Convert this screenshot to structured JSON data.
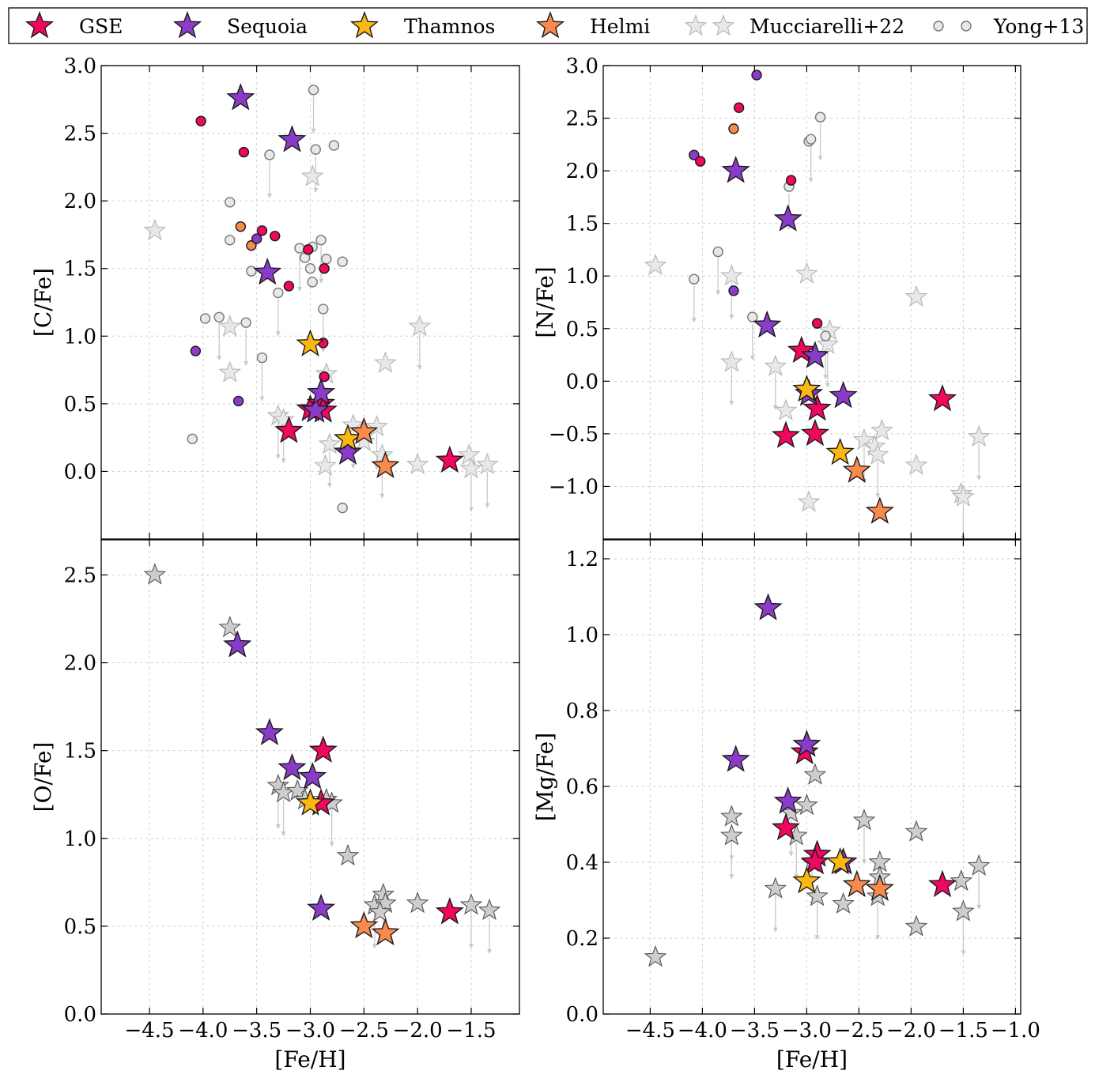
{
  "legend": [
    {
      "key": "gse",
      "label": "GSE",
      "marker": "star",
      "color": "#f0075f"
    },
    {
      "key": "seq",
      "label": "Sequoia",
      "marker": "star",
      "color": "#8a3cc8"
    },
    {
      "key": "tha",
      "label": "Thamnos",
      "marker": "star",
      "color": "#fbb813"
    },
    {
      "key": "hel",
      "label": "Helmi",
      "marker": "star",
      "color": "#f88a4e"
    },
    {
      "key": "muc",
      "label": "Mucciarelli+22",
      "marker": "star",
      "color": "#e8e8e8"
    },
    {
      "key": "yon",
      "label": "Yong+13",
      "marker": "circle",
      "color": "#e8e8e8"
    }
  ],
  "chart_data": [
    {
      "id": "cfe",
      "type": "scatter",
      "xlabel": "[Fe/H]",
      "ylabel": "[C/Fe]",
      "xlim": [
        -4.95,
        -1.05
      ],
      "ylim": [
        -0.5,
        3.0
      ],
      "xticks": [],
      "yticks": [
        0.0,
        0.5,
        1.0,
        1.5,
        2.0,
        2.5,
        3.0
      ],
      "grid": true,
      "points": [
        {
          "g": "muc",
          "x": -4.45,
          "y": 1.78
        },
        {
          "g": "muc",
          "x": -3.75,
          "y": 1.07
        },
        {
          "g": "muc",
          "x": -3.75,
          "y": 0.73
        },
        {
          "g": "muc",
          "x": -2.98,
          "y": 2.18
        },
        {
          "g": "muc",
          "x": -3.3,
          "y": 0.41
        },
        {
          "g": "muc",
          "x": -3.25,
          "y": 0.38
        },
        {
          "g": "muc",
          "x": -2.85,
          "y": 0.72
        },
        {
          "g": "muc",
          "x": -2.82,
          "y": 0.2
        },
        {
          "g": "muc",
          "x": -2.86,
          "y": 0.04
        },
        {
          "g": "muc",
          "x": -2.6,
          "y": 0.34
        },
        {
          "g": "muc",
          "x": -2.5,
          "y": 0.22
        },
        {
          "g": "muc",
          "x": -2.38,
          "y": 0.33
        },
        {
          "g": "muc",
          "x": -2.33,
          "y": 0.12
        },
        {
          "g": "muc",
          "x": -2.3,
          "y": 0.8
        },
        {
          "g": "muc",
          "x": -1.98,
          "y": 1.07
        },
        {
          "g": "muc",
          "x": -2.0,
          "y": 0.05
        },
        {
          "g": "muc",
          "x": -1.52,
          "y": 0.12
        },
        {
          "g": "muc",
          "x": -1.5,
          "y": 0.02
        },
        {
          "g": "muc",
          "x": -1.35,
          "y": 0.05
        },
        {
          "g": "yon",
          "x": -2.97,
          "y": 2.82
        },
        {
          "g": "yon",
          "x": -2.95,
          "y": 2.38
        },
        {
          "g": "yon",
          "x": -2.78,
          "y": 2.41
        },
        {
          "g": "yon",
          "x": -3.38,
          "y": 2.34
        },
        {
          "g": "yon",
          "x": -3.75,
          "y": 1.99
        },
        {
          "g": "yon",
          "x": -3.75,
          "y": 1.71
        },
        {
          "g": "yon",
          "x": -3.55,
          "y": 1.48
        },
        {
          "g": "yon",
          "x": -2.98,
          "y": 1.66
        },
        {
          "g": "yon",
          "x": -3.1,
          "y": 1.65
        },
        {
          "g": "yon",
          "x": -2.9,
          "y": 1.71
        },
        {
          "g": "yon",
          "x": -2.85,
          "y": 1.57
        },
        {
          "g": "yon",
          "x": -2.7,
          "y": 1.55
        },
        {
          "g": "yon",
          "x": -3.05,
          "y": 1.58
        },
        {
          "g": "yon",
          "x": -3.0,
          "y": 1.5
        },
        {
          "g": "yon",
          "x": -2.98,
          "y": 1.4
        },
        {
          "g": "yon",
          "x": -3.3,
          "y": 1.32
        },
        {
          "g": "yon",
          "x": -2.88,
          "y": 1.2
        },
        {
          "g": "yon",
          "x": -3.98,
          "y": 1.13
        },
        {
          "g": "yon",
          "x": -3.85,
          "y": 1.14
        },
        {
          "g": "yon",
          "x": -3.6,
          "y": 1.1
        },
        {
          "g": "yon",
          "x": -3.45,
          "y": 0.84
        },
        {
          "g": "yon",
          "x": -4.1,
          "y": 0.24
        },
        {
          "g": "yon",
          "x": -2.7,
          "y": -0.27
        },
        {
          "g": "gse",
          "x": -4.02,
          "y": 2.59
        },
        {
          "g": "gse",
          "x": -3.62,
          "y": 2.36
        },
        {
          "g": "gse",
          "x": -3.45,
          "y": 1.78
        },
        {
          "g": "gse",
          "x": -3.33,
          "y": 1.74
        },
        {
          "g": "gse",
          "x": -3.2,
          "y": 1.37
        },
        {
          "g": "gse",
          "x": -3.02,
          "y": 1.64
        },
        {
          "g": "gse",
          "x": -2.87,
          "y": 1.5
        },
        {
          "g": "gse",
          "x": -2.88,
          "y": 0.95
        },
        {
          "g": "gse",
          "x": -2.87,
          "y": 0.7
        },
        {
          "g": "hel",
          "x": -3.65,
          "y": 1.81
        },
        {
          "g": "hel",
          "x": -3.55,
          "y": 1.67
        },
        {
          "g": "seq",
          "x": -3.5,
          "y": 1.72
        },
        {
          "g": "seq",
          "x": -4.07,
          "y": 0.89
        },
        {
          "g": "seq",
          "x": -3.67,
          "y": 0.52
        },
        {
          "g": "gse",
          "x": -3.2,
          "y": 0.3,
          "s": "big"
        },
        {
          "g": "gse",
          "x": -3.0,
          "y": 0.46,
          "s": "big"
        },
        {
          "g": "gse",
          "x": -2.9,
          "y": 0.5,
          "s": "big"
        },
        {
          "g": "gse",
          "x": -2.88,
          "y": 0.45,
          "s": "big"
        },
        {
          "g": "gse",
          "x": -1.7,
          "y": 0.08,
          "s": "big"
        },
        {
          "g": "seq",
          "x": -3.65,
          "y": 2.76,
          "s": "big"
        },
        {
          "g": "seq",
          "x": -3.17,
          "y": 2.45,
          "s": "big"
        },
        {
          "g": "seq",
          "x": -3.4,
          "y": 1.47,
          "s": "big"
        },
        {
          "g": "seq",
          "x": -2.95,
          "y": 0.45,
          "s": "big"
        },
        {
          "g": "seq",
          "x": -2.9,
          "y": 0.58,
          "s": "big"
        },
        {
          "g": "seq",
          "x": -2.65,
          "y": 0.14,
          "s": "big"
        },
        {
          "g": "tha",
          "x": -3.0,
          "y": 0.94,
          "s": "big"
        },
        {
          "g": "tha",
          "x": -2.65,
          "y": 0.24,
          "s": "big"
        },
        {
          "g": "hel",
          "x": -2.5,
          "y": 0.29,
          "s": "big"
        },
        {
          "g": "hel",
          "x": -2.3,
          "y": 0.04,
          "s": "big"
        }
      ]
    },
    {
      "id": "nfe",
      "type": "scatter",
      "xlabel": "[Fe/H]",
      "ylabel": "[N/Fe]",
      "xlim": [
        -4.95,
        -0.95
      ],
      "ylim": [
        -1.5,
        3.0
      ],
      "xticks": [],
      "yticks": [
        -1.0,
        -0.5,
        0.0,
        0.5,
        1.0,
        1.5,
        2.0,
        2.5,
        3.0
      ],
      "grid": true,
      "points": [
        {
          "g": "muc",
          "x": -4.45,
          "y": 1.1
        },
        {
          "g": "muc",
          "x": -3.72,
          "y": 1.0
        },
        {
          "g": "muc",
          "x": -3.72,
          "y": 0.18
        },
        {
          "g": "muc",
          "x": -3.3,
          "y": 0.14
        },
        {
          "g": "muc",
          "x": -3.2,
          "y": -0.28
        },
        {
          "g": "muc",
          "x": -3.0,
          "y": 1.02
        },
        {
          "g": "muc",
          "x": -2.98,
          "y": -1.15
        },
        {
          "g": "muc",
          "x": -2.8,
          "y": 0.35
        },
        {
          "g": "muc",
          "x": -2.78,
          "y": 0.48
        },
        {
          "g": "muc",
          "x": -2.45,
          "y": -0.56
        },
        {
          "g": "muc",
          "x": -2.35,
          "y": -0.62
        },
        {
          "g": "muc",
          "x": -2.32,
          "y": -0.7
        },
        {
          "g": "muc",
          "x": -2.28,
          "y": -0.47
        },
        {
          "g": "muc",
          "x": -1.95,
          "y": 0.8
        },
        {
          "g": "muc",
          "x": -1.95,
          "y": -0.8
        },
        {
          "g": "muc",
          "x": -1.52,
          "y": -1.07
        },
        {
          "g": "muc",
          "x": -1.5,
          "y": -1.1
        },
        {
          "g": "muc",
          "x": -1.35,
          "y": -0.53
        },
        {
          "g": "yon",
          "x": -2.98,
          "y": 2.28
        },
        {
          "g": "yon",
          "x": -2.96,
          "y": 2.3
        },
        {
          "g": "yon",
          "x": -2.87,
          "y": 2.51
        },
        {
          "g": "yon",
          "x": -3.17,
          "y": 1.85
        },
        {
          "g": "yon",
          "x": -3.85,
          "y": 1.23
        },
        {
          "g": "yon",
          "x": -4.08,
          "y": 0.97
        },
        {
          "g": "yon",
          "x": -3.52,
          "y": 0.61
        },
        {
          "g": "yon",
          "x": -2.82,
          "y": 0.43
        },
        {
          "g": "seq",
          "x": -3.48,
          "y": 2.91
        },
        {
          "g": "seq",
          "x": -4.08,
          "y": 2.15
        },
        {
          "g": "seq",
          "x": -3.7,
          "y": 0.86
        },
        {
          "g": "gse",
          "x": -3.65,
          "y": 2.6
        },
        {
          "g": "gse",
          "x": -4.02,
          "y": 2.09
        },
        {
          "g": "gse",
          "x": -3.15,
          "y": 1.91
        },
        {
          "g": "gse",
          "x": -2.9,
          "y": 0.55
        },
        {
          "g": "hel",
          "x": -3.7,
          "y": 2.4
        },
        {
          "g": "gse",
          "x": -3.05,
          "y": 0.29,
          "s": "big"
        },
        {
          "g": "gse",
          "x": -2.9,
          "y": -0.26,
          "s": "big"
        },
        {
          "g": "gse",
          "x": -3.2,
          "y": -0.52,
          "s": "big"
        },
        {
          "g": "gse",
          "x": -2.92,
          "y": -0.5,
          "s": "big"
        },
        {
          "g": "gse",
          "x": -1.7,
          "y": -0.17,
          "s": "big"
        },
        {
          "g": "seq",
          "x": -3.68,
          "y": 2.0,
          "s": "big"
        },
        {
          "g": "seq",
          "x": -3.18,
          "y": 1.54,
          "s": "big"
        },
        {
          "g": "seq",
          "x": -3.38,
          "y": 0.53,
          "s": "big"
        },
        {
          "g": "seq",
          "x": -2.92,
          "y": 0.24,
          "s": "big"
        },
        {
          "g": "seq",
          "x": -2.98,
          "y": -0.12,
          "s": "big"
        },
        {
          "g": "seq",
          "x": -2.65,
          "y": -0.14,
          "s": "big"
        },
        {
          "g": "tha",
          "x": -3.0,
          "y": -0.08,
          "s": "big"
        },
        {
          "g": "tha",
          "x": -2.68,
          "y": -0.68,
          "s": "big"
        },
        {
          "g": "hel",
          "x": -2.52,
          "y": -0.85,
          "s": "big"
        },
        {
          "g": "hel",
          "x": -2.3,
          "y": -1.24,
          "s": "big"
        }
      ]
    },
    {
      "id": "ofe",
      "type": "scatter",
      "xlabel": "[Fe/H]",
      "ylabel": "[O/Fe]",
      "xlim": [
        -4.95,
        -1.05
      ],
      "ylim": [
        0.0,
        2.7
      ],
      "xticks": [
        -4.5,
        -4.0,
        -3.5,
        -3.0,
        -2.5,
        -2.0,
        -1.5
      ],
      "yticks": [
        0.0,
        0.5,
        1.0,
        1.5,
        2.0,
        2.5
      ],
      "grid": true,
      "points": [
        {
          "g": "mucd",
          "x": -4.45,
          "y": 2.5
        },
        {
          "g": "mucd",
          "x": -3.75,
          "y": 2.2
        },
        {
          "g": "mucd",
          "x": -3.3,
          "y": 1.3
        },
        {
          "g": "mucd",
          "x": -3.25,
          "y": 1.26
        },
        {
          "g": "mucd",
          "x": -3.12,
          "y": 1.27
        },
        {
          "g": "mucd",
          "x": -3.05,
          "y": 1.22
        },
        {
          "g": "mucd",
          "x": -2.85,
          "y": 1.22
        },
        {
          "g": "mucd",
          "x": -2.8,
          "y": 1.2
        },
        {
          "g": "mucd",
          "x": -2.65,
          "y": 0.9
        },
        {
          "g": "mucd",
          "x": -2.4,
          "y": 0.62
        },
        {
          "g": "mucd",
          "x": -2.32,
          "y": 0.68
        },
        {
          "g": "mucd",
          "x": -2.3,
          "y": 0.63
        },
        {
          "g": "mucd",
          "x": -2.35,
          "y": 0.58
        },
        {
          "g": "mucd",
          "x": -2.0,
          "y": 0.63
        },
        {
          "g": "mucd",
          "x": -1.5,
          "y": 0.62
        },
        {
          "g": "mucd",
          "x": -1.33,
          "y": 0.59
        },
        {
          "g": "gse",
          "x": -2.88,
          "y": 1.5,
          "s": "big"
        },
        {
          "g": "gse",
          "x": -2.9,
          "y": 1.2,
          "s": "big"
        },
        {
          "g": "gse",
          "x": -1.7,
          "y": 0.58,
          "s": "big"
        },
        {
          "g": "seq",
          "x": -3.68,
          "y": 2.1,
          "s": "big"
        },
        {
          "g": "seq",
          "x": -3.38,
          "y": 1.6,
          "s": "big"
        },
        {
          "g": "seq",
          "x": -3.17,
          "y": 1.4,
          "s": "big"
        },
        {
          "g": "seq",
          "x": -2.98,
          "y": 1.35,
          "s": "big"
        },
        {
          "g": "seq",
          "x": -2.9,
          "y": 0.6,
          "s": "big"
        },
        {
          "g": "tha",
          "x": -3.0,
          "y": 1.2,
          "s": "big"
        },
        {
          "g": "hel",
          "x": -2.5,
          "y": 0.5,
          "s": "big"
        },
        {
          "g": "hel",
          "x": -2.3,
          "y": 0.46,
          "s": "big"
        }
      ]
    },
    {
      "id": "mgfe",
      "type": "scatter",
      "xlabel": "[Fe/H]",
      "ylabel": "[Mg/Fe]",
      "xlim": [
        -4.95,
        -0.95
      ],
      "ylim": [
        0.0,
        1.25
      ],
      "xticks": [
        -4.5,
        -4.0,
        -3.5,
        -3.0,
        -2.5,
        -2.0,
        -1.5,
        -1.0
      ],
      "yticks": [
        0.0,
        0.2,
        0.4,
        0.6,
        0.8,
        1.0,
        1.2
      ],
      "grid": true,
      "points": [
        {
          "g": "mucd",
          "x": -4.45,
          "y": 0.15
        },
        {
          "g": "mucd",
          "x": -3.72,
          "y": 0.52
        },
        {
          "g": "mucd",
          "x": -3.72,
          "y": 0.47
        },
        {
          "g": "mucd",
          "x": -3.3,
          "y": 0.33
        },
        {
          "g": "mucd",
          "x": -3.15,
          "y": 0.53
        },
        {
          "g": "mucd",
          "x": -3.1,
          "y": 0.47
        },
        {
          "g": "mucd",
          "x": -3.0,
          "y": 0.55
        },
        {
          "g": "mucd",
          "x": -2.92,
          "y": 0.63
        },
        {
          "g": "mucd",
          "x": -2.95,
          "y": 0.4
        },
        {
          "g": "mucd",
          "x": -2.9,
          "y": 0.31
        },
        {
          "g": "mucd",
          "x": -2.65,
          "y": 0.29
        },
        {
          "g": "mucd",
          "x": -2.45,
          "y": 0.51
        },
        {
          "g": "mucd",
          "x": -2.3,
          "y": 0.4
        },
        {
          "g": "mucd",
          "x": -2.3,
          "y": 0.36
        },
        {
          "g": "mucd",
          "x": -2.32,
          "y": 0.31
        },
        {
          "g": "mucd",
          "x": -1.95,
          "y": 0.48
        },
        {
          "g": "mucd",
          "x": -1.95,
          "y": 0.23
        },
        {
          "g": "mucd",
          "x": -1.52,
          "y": 0.35
        },
        {
          "g": "mucd",
          "x": -1.5,
          "y": 0.27
        },
        {
          "g": "mucd",
          "x": -1.35,
          "y": 0.39
        },
        {
          "g": "gse",
          "x": -3.02,
          "y": 0.69,
          "s": "big"
        },
        {
          "g": "gse",
          "x": -3.2,
          "y": 0.49,
          "s": "big"
        },
        {
          "g": "gse",
          "x": -2.9,
          "y": 0.42,
          "s": "big"
        },
        {
          "g": "gse",
          "x": -2.92,
          "y": 0.4,
          "s": "big"
        },
        {
          "g": "gse",
          "x": -1.7,
          "y": 0.34,
          "s": "big"
        },
        {
          "g": "seq",
          "x": -3.37,
          "y": 1.07,
          "s": "big"
        },
        {
          "g": "seq",
          "x": -3.68,
          "y": 0.67,
          "s": "big"
        },
        {
          "g": "seq",
          "x": -3.0,
          "y": 0.71,
          "s": "big"
        },
        {
          "g": "seq",
          "x": -3.18,
          "y": 0.56,
          "s": "big"
        },
        {
          "g": "seq",
          "x": -2.65,
          "y": 0.4,
          "s": "big"
        },
        {
          "g": "tha",
          "x": -3.0,
          "y": 0.35,
          "s": "big"
        },
        {
          "g": "tha",
          "x": -2.68,
          "y": 0.4,
          "s": "big"
        },
        {
          "g": "hel",
          "x": -2.52,
          "y": 0.34,
          "s": "big"
        },
        {
          "g": "hel",
          "x": -2.3,
          "y": 0.33,
          "s": "big"
        }
      ]
    }
  ]
}
